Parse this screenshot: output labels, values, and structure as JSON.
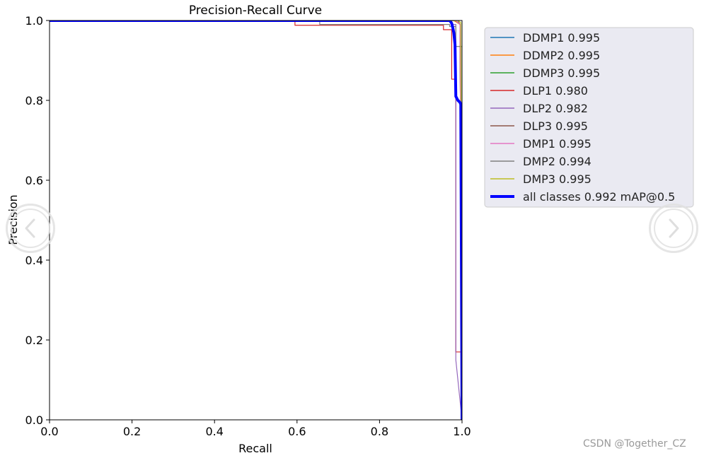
{
  "chart_data": {
    "type": "line",
    "title": "Precision-Recall Curve",
    "xlabel": "Recall",
    "ylabel": "Precision",
    "xlim": [
      0,
      1
    ],
    "ylim": [
      0,
      1
    ],
    "xticks": [
      0.0,
      0.2,
      0.4,
      0.6,
      0.8,
      1.0
    ],
    "yticks": [
      0.0,
      0.2,
      0.4,
      0.6,
      0.8,
      1.0
    ],
    "grid": false,
    "legend_placement": "outside-right-top",
    "series": [
      {
        "name": "DDMP1 0.995",
        "color": "#1f77b4",
        "x": [
          0,
          0.985,
          0.995,
          1.0
        ],
        "y": [
          1.0,
          1.0,
          0.99,
          0.0
        ]
      },
      {
        "name": "DDMP2 0.995",
        "color": "#ff7f0e",
        "x": [
          0,
          0.98,
          0.995,
          1.0
        ],
        "y": [
          1.0,
          1.0,
          0.99,
          0.0
        ]
      },
      {
        "name": "DDMP3 0.995",
        "color": "#2ca02c",
        "x": [
          0,
          0.985,
          0.995,
          1.0
        ],
        "y": [
          1.0,
          1.0,
          0.99,
          0.0
        ]
      },
      {
        "name": "DLP1 0.980",
        "color": "#d62728",
        "x": [
          0,
          0.595,
          0.595,
          0.955,
          0.955,
          0.975,
          0.975,
          0.985,
          0.985,
          1.0,
          1.0
        ],
        "y": [
          1.0,
          1.0,
          0.988,
          0.988,
          0.977,
          0.977,
          0.853,
          0.853,
          0.17,
          0.17,
          0.0
        ]
      },
      {
        "name": "DLP2 0.982",
        "color": "#9467bd",
        "x": [
          0,
          0.975,
          0.975,
          0.985,
          0.985,
          1.0
        ],
        "y": [
          1.0,
          1.0,
          0.99,
          0.99,
          0.15,
          0.0
        ]
      },
      {
        "name": "DLP3 0.995",
        "color": "#8c564b",
        "x": [
          0,
          0.99,
          0.995,
          1.0
        ],
        "y": [
          1.0,
          1.0,
          0.99,
          0.0
        ]
      },
      {
        "name": "DMP1 0.995",
        "color": "#e377c2",
        "x": [
          0,
          0.985,
          0.995,
          1.0
        ],
        "y": [
          1.0,
          1.0,
          0.99,
          0.0
        ]
      },
      {
        "name": "DMP2 0.994",
        "color": "#7f7f7f",
        "x": [
          0,
          0.655,
          0.655,
          0.97,
          0.97,
          0.985,
          0.985,
          1.0,
          1.0
        ],
        "y": [
          1.0,
          1.0,
          0.99,
          0.99,
          0.985,
          0.985,
          0.935,
          0.935,
          0.0
        ]
      },
      {
        "name": "DMP3 0.995",
        "color": "#bcbd22",
        "x": [
          0,
          0.99,
          0.997,
          1.0
        ],
        "y": [
          1.0,
          1.0,
          0.995,
          0.0
        ]
      },
      {
        "name": "all classes 0.992 mAP@0.5",
        "color": "#0000ff",
        "emphasis": "thick",
        "x": [
          0,
          0.97,
          0.975,
          0.978,
          0.98,
          0.983,
          0.985,
          0.99,
          0.995,
          0.997,
          1.0
        ],
        "y": [
          1.0,
          1.0,
          0.993,
          0.98,
          0.97,
          0.94,
          0.81,
          0.8,
          0.795,
          0.79,
          0.0
        ]
      }
    ]
  },
  "watermark": "CSDN @Together_CZ",
  "nav": {
    "prev_icon": "chevron-left-icon",
    "next_icon": "chevron-right-icon"
  }
}
